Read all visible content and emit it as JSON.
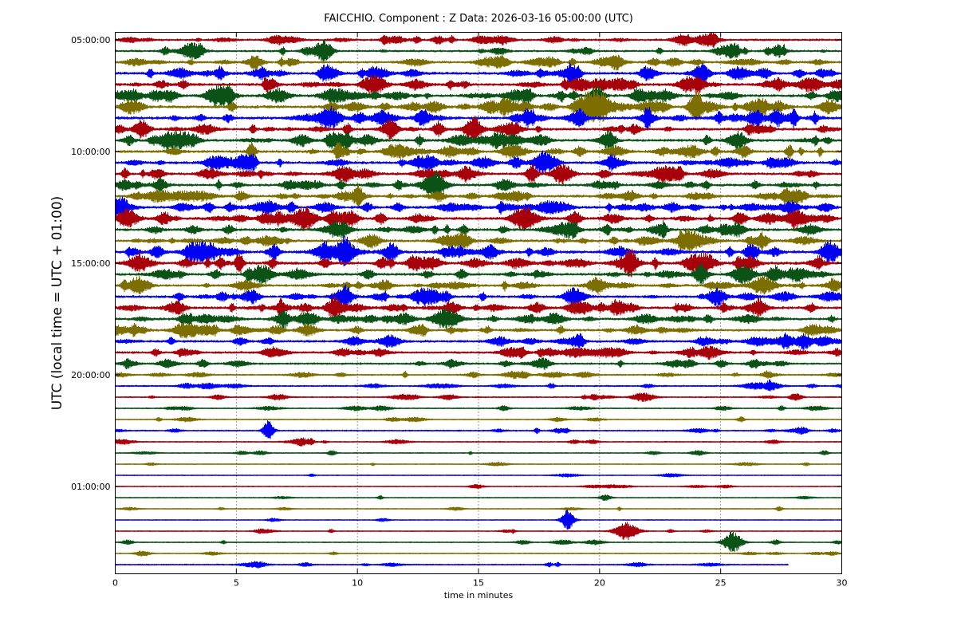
{
  "chart_data": {
    "type": "line",
    "title": "FAICCHIO. Component : Z Data: 2026-03-16 05:00:00 (UTC)",
    "xlabel": "time in minutes",
    "ylabel": "UTC (local time = UTC + 01:00)",
    "xlim": [
      0,
      30
    ],
    "x_ticks": [
      "0",
      "5",
      "10",
      "15",
      "20",
      "25",
      "30"
    ],
    "x_tick_values": [
      0,
      5,
      10,
      15,
      20,
      25,
      30
    ],
    "y_tick_labels": [
      "05:00:00",
      "10:00:00",
      "15:00:00",
      "20:00:00",
      "01:00:00"
    ],
    "y_tick_trace_index": [
      0,
      10,
      20,
      30,
      40
    ],
    "trace_count": 48,
    "trace_interval_minutes": 30,
    "trace_colors": [
      "#a8000a",
      "#0b5216",
      "#7d6e00",
      "#0000f5"
    ],
    "vertical_gridlines_minutes": [
      5,
      10,
      15,
      20,
      25
    ],
    "grid": "vertical dotted",
    "last_trace_end_minutes": 27.8,
    "trace_activity": [
      0.55,
      0.55,
      0.6,
      0.8,
      0.85,
      0.85,
      0.9,
      0.9,
      0.8,
      0.8,
      0.8,
      0.8,
      0.75,
      0.75,
      0.75,
      0.8,
      0.85,
      0.8,
      0.75,
      0.9,
      0.9,
      0.75,
      0.7,
      0.7,
      0.8,
      0.7,
      0.65,
      0.65,
      0.6,
      0.5,
      0.35,
      0.3,
      0.25,
      0.2,
      0.15,
      0.25,
      0.2,
      0.15,
      0.1,
      0.05,
      0.1,
      0.1,
      0.08,
      0.05,
      0.1,
      0.15,
      0.15,
      0.2
    ]
  }
}
